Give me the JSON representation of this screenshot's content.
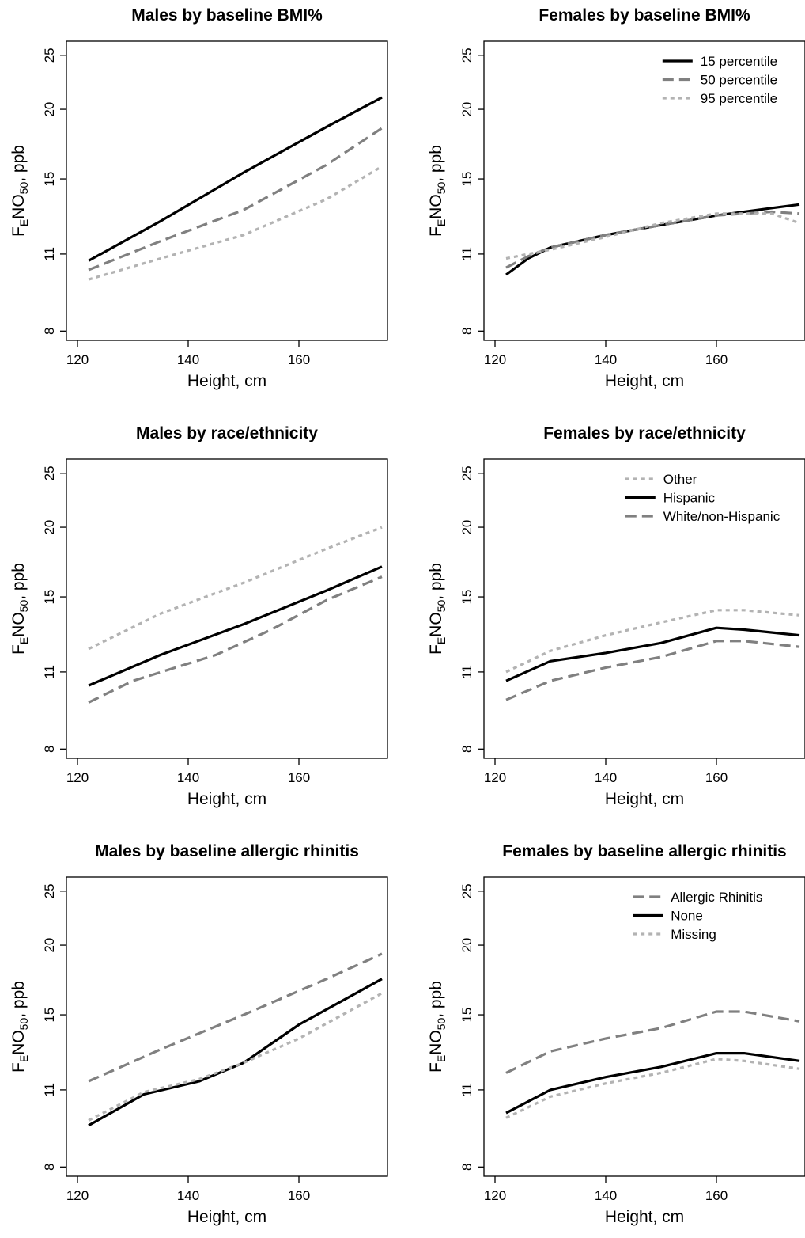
{
  "chart_data": [
    {
      "type": "line",
      "title": "Males by baseline BMI%",
      "xlabel": "Height, cm",
      "ylabel": "FENO50, ppb",
      "ylabel_parts": {
        "main": "F",
        "sub1": "E",
        "mid": "NO",
        "sub2": "50",
        "tail": ", ppb"
      },
      "yscale": "log",
      "xlim": [
        118,
        176
      ],
      "ylim": [
        7.7,
        26.5
      ],
      "xticks": [
        120,
        140,
        160
      ],
      "yticks": [
        8,
        11,
        15,
        20,
        25
      ],
      "legend": null,
      "series": [
        {
          "name": "15 percentile",
          "style": "solid",
          "color": "#000000",
          "x": [
            122,
            135,
            150,
            165,
            175
          ],
          "y": [
            10.7,
            12.6,
            15.4,
            18.6,
            21.0
          ]
        },
        {
          "name": "50 percentile",
          "style": "dashed",
          "color": "#808080",
          "x": [
            122,
            135,
            150,
            165,
            175
          ],
          "y": [
            10.3,
            11.6,
            13.2,
            15.9,
            18.5
          ]
        },
        {
          "name": "95 percentile",
          "style": "dotted",
          "color": "#b3b3b3",
          "x": [
            122,
            135,
            150,
            165,
            175
          ],
          "y": [
            9.9,
            10.8,
            11.9,
            13.8,
            15.8
          ]
        }
      ]
    },
    {
      "type": "line",
      "title": "Females by baseline BMI%",
      "xlabel": "Height, cm",
      "ylabel": "FENO50, ppb",
      "ylabel_parts": {
        "main": "F",
        "sub1": "E",
        "mid": "NO",
        "sub2": "50",
        "tail": ", ppb"
      },
      "yscale": "log",
      "xlim": [
        118,
        176
      ],
      "ylim": [
        7.7,
        26.5
      ],
      "xticks": [
        120,
        140,
        160
      ],
      "yticks": [
        8,
        11,
        15,
        20,
        25
      ],
      "legend": "top-right",
      "series": [
        {
          "name": "15 percentile",
          "style": "solid",
          "color": "#000000",
          "x": [
            122,
            126,
            130,
            140,
            150,
            160,
            170,
            175
          ],
          "y": [
            10.1,
            10.8,
            11.3,
            11.9,
            12.4,
            12.9,
            13.3,
            13.5
          ]
        },
        {
          "name": "50 percentile",
          "style": "dashed",
          "color": "#808080",
          "x": [
            122,
            126,
            130,
            140,
            150,
            160,
            170,
            175
          ],
          "y": [
            10.4,
            10.9,
            11.3,
            11.9,
            12.4,
            12.9,
            13.1,
            13.0
          ]
        },
        {
          "name": "95 percentile",
          "style": "dotted",
          "color": "#b3b3b3",
          "x": [
            122,
            126,
            130,
            140,
            150,
            160,
            170,
            175
          ],
          "y": [
            10.8,
            11.0,
            11.2,
            11.8,
            12.5,
            13.0,
            13.0,
            12.5
          ]
        }
      ]
    },
    {
      "type": "line",
      "title": "Males by race/ethnicity",
      "xlabel": "Height, cm",
      "ylabel": "FENO50, ppb",
      "ylabel_parts": {
        "main": "F",
        "sub1": "E",
        "mid": "NO",
        "sub2": "50",
        "tail": ", ppb"
      },
      "yscale": "log",
      "xlim": [
        118,
        176
      ],
      "ylim": [
        7.7,
        26.5
      ],
      "xticks": [
        120,
        140,
        160
      ],
      "yticks": [
        8,
        11,
        15,
        20,
        25
      ],
      "legend": null,
      "series": [
        {
          "name": "Other",
          "style": "dotted",
          "color": "#b3b3b3",
          "x": [
            122,
            135,
            150,
            165,
            175
          ],
          "y": [
            12.1,
            14.0,
            15.9,
            18.3,
            20.0
          ]
        },
        {
          "name": "Hispanic",
          "style": "solid",
          "color": "#000000",
          "x": [
            122,
            135,
            150,
            165,
            175
          ],
          "y": [
            10.4,
            11.8,
            13.4,
            15.4,
            17.0
          ]
        },
        {
          "name": "White/non-Hispanic",
          "style": "dashed",
          "color": "#808080",
          "x": [
            122,
            130,
            145,
            155,
            165,
            175
          ],
          "y": [
            9.7,
            10.6,
            11.8,
            13.1,
            14.8,
            16.3
          ]
        }
      ]
    },
    {
      "type": "line",
      "title": "Females by race/ethnicity",
      "xlabel": "Height, cm",
      "ylabel": "FENO50, ppb",
      "ylabel_parts": {
        "main": "F",
        "sub1": "E",
        "mid": "NO",
        "sub2": "50",
        "tail": ", ppb"
      },
      "yscale": "log",
      "xlim": [
        118,
        176
      ],
      "ylim": [
        7.7,
        26.5
      ],
      "xticks": [
        120,
        140,
        160
      ],
      "yticks": [
        8,
        11,
        15,
        20,
        25
      ],
      "legend": "top-right",
      "series": [
        {
          "name": "Other",
          "style": "dotted",
          "color": "#b3b3b3",
          "x": [
            122,
            130,
            140,
            150,
            160,
            165,
            175
          ],
          "y": [
            11.0,
            12.0,
            12.8,
            13.5,
            14.2,
            14.2,
            13.9
          ]
        },
        {
          "name": "Hispanic",
          "style": "solid",
          "color": "#000000",
          "x": [
            122,
            130,
            140,
            150,
            160,
            165,
            175
          ],
          "y": [
            10.6,
            11.5,
            11.9,
            12.4,
            13.2,
            13.1,
            12.8
          ]
        },
        {
          "name": "White/non-Hispanic",
          "style": "dashed",
          "color": "#808080",
          "x": [
            122,
            130,
            140,
            150,
            160,
            165,
            175
          ],
          "y": [
            9.8,
            10.6,
            11.2,
            11.7,
            12.5,
            12.5,
            12.2
          ]
        }
      ]
    },
    {
      "type": "line",
      "title": "Males by baseline allergic rhinitis",
      "xlabel": "Height, cm",
      "ylabel": "FENO50, ppb",
      "ylabel_parts": {
        "main": "F",
        "sub1": "E",
        "mid": "NO",
        "sub2": "50",
        "tail": ", ppb"
      },
      "yscale": "log",
      "xlim": [
        118,
        176
      ],
      "ylim": [
        7.7,
        26.5
      ],
      "xticks": [
        120,
        140,
        160
      ],
      "yticks": [
        8,
        11,
        15,
        20,
        25
      ],
      "legend": null,
      "series": [
        {
          "name": "Allergic Rhinitis",
          "style": "dashed",
          "color": "#808080",
          "x": [
            122,
            135,
            150,
            165,
            175
          ],
          "y": [
            11.4,
            13.0,
            15.0,
            17.4,
            19.3
          ]
        },
        {
          "name": "None",
          "style": "solid",
          "color": "#000000",
          "x": [
            122,
            132,
            142,
            150,
            160,
            175
          ],
          "y": [
            9.5,
            10.8,
            11.4,
            12.3,
            14.4,
            17.4
          ]
        },
        {
          "name": "Missing",
          "style": "dotted",
          "color": "#b3b3b3",
          "x": [
            122,
            132,
            142,
            150,
            160,
            175
          ],
          "y": [
            9.7,
            10.9,
            11.5,
            12.3,
            13.6,
            16.4
          ]
        }
      ]
    },
    {
      "type": "line",
      "title": "Females by baseline allergic rhinitis",
      "xlabel": "Height, cm",
      "ylabel": "FENO50, ppb",
      "ylabel_parts": {
        "main": "F",
        "sub1": "E",
        "mid": "NO",
        "sub2": "50",
        "tail": ", ppb"
      },
      "yscale": "log",
      "xlim": [
        118,
        176
      ],
      "ylim": [
        7.7,
        26.5
      ],
      "xticks": [
        120,
        140,
        160
      ],
      "yticks": [
        8,
        11,
        15,
        20,
        25
      ],
      "legend": "top-right",
      "series": [
        {
          "name": "Allergic Rhinitis",
          "style": "dashed",
          "color": "#808080",
          "x": [
            122,
            130,
            140,
            150,
            160,
            165,
            175
          ],
          "y": [
            11.8,
            12.9,
            13.6,
            14.2,
            15.2,
            15.2,
            14.6
          ]
        },
        {
          "name": "None",
          "style": "solid",
          "color": "#000000",
          "x": [
            122,
            130,
            140,
            150,
            160,
            165,
            175
          ],
          "y": [
            10.0,
            11.0,
            11.6,
            12.1,
            12.8,
            12.8,
            12.4
          ]
        },
        {
          "name": "Missing",
          "style": "dotted",
          "color": "#b3b3b3",
          "x": [
            122,
            130,
            140,
            150,
            160,
            165,
            175
          ],
          "y": [
            9.8,
            10.7,
            11.3,
            11.8,
            12.5,
            12.4,
            12.0
          ]
        }
      ]
    }
  ]
}
